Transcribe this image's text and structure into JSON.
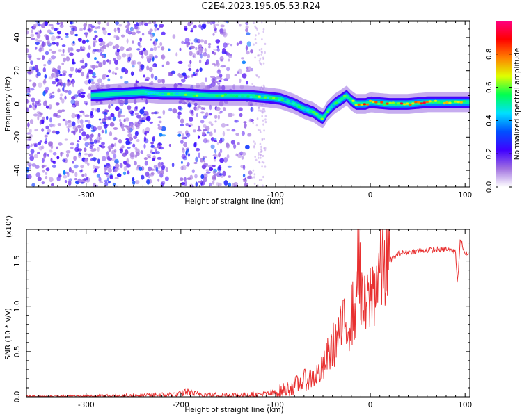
{
  "title": "C2E4.2023.195.05.53.R24",
  "colors": {
    "signal": "#e83030",
    "axis": "#000000",
    "colorbar_stops": [
      "#ffffff",
      "#a070e0",
      "#4000ff",
      "#0050ff",
      "#00e0ff",
      "#00ff50",
      "#e0ff00",
      "#ff8000",
      "#ff0000",
      "#ff0080"
    ]
  },
  "chart_data": [
    {
      "type": "heatmap",
      "title": "",
      "xlabel": "Height of straight line (km)",
      "ylabel": "Frequency (Hz)",
      "xlim": [
        -363,
        105
      ],
      "ylim": [
        -50,
        50
      ],
      "xticks": [
        -300,
        -200,
        -100,
        0,
        100
      ],
      "yticks": [
        -40,
        -20,
        0,
        20,
        40
      ],
      "colorbar": {
        "label": "Normalized spectral amplitude",
        "range": [
          0.0,
          1.0
        ],
        "ticks": [
          "0.0",
          "0.2",
          "0.4",
          "0.6",
          "0.8"
        ]
      },
      "ridge": {
        "x": [
          -295,
          -270,
          -240,
          -220,
          -200,
          -170,
          -150,
          -130,
          -110,
          -95,
          -80,
          -70,
          -60,
          -50,
          -45,
          -38,
          -30,
          -25,
          -20,
          -15,
          -10,
          -5,
          0,
          20,
          40,
          60,
          80,
          100
        ],
        "y": [
          5,
          6,
          7,
          6,
          6,
          5,
          5,
          5,
          4,
          3,
          0,
          -3,
          -5,
          -9,
          -4,
          0,
          3,
          5,
          2,
          0,
          0,
          0,
          1,
          0,
          0,
          1,
          1,
          1
        ]
      }
    },
    {
      "type": "line",
      "title": "",
      "xlabel": "Height of straight line (km)",
      "ylabel": "SNR (10 * v/v)",
      "scale_label": "(x10⁴)",
      "xlim": [
        -363,
        105
      ],
      "ylim": [
        0,
        1.85
      ],
      "xticks": [
        -300,
        -200,
        -100,
        0,
        100
      ],
      "yticks": [
        "0.0",
        "0.5",
        "1.0",
        "1.5"
      ],
      "series": [
        {
          "x": [
            -363,
            -300,
            -250,
            -220,
            -200,
            -195,
            -185,
            -160,
            -130,
            -110,
            -100,
            -90,
            -80,
            -70,
            -60,
            -50,
            -45,
            -40,
            -35,
            -30,
            -25,
            -20,
            -15,
            -12,
            -10,
            -5,
            0,
            5,
            10,
            20,
            30,
            40,
            60,
            80,
            90,
            92,
            95,
            100,
            105
          ],
          "y": [
            0.0,
            0.0,
            0.01,
            0.02,
            0.03,
            0.06,
            0.03,
            0.02,
            0.02,
            0.03,
            0.04,
            0.08,
            0.12,
            0.18,
            0.22,
            0.3,
            0.45,
            0.55,
            0.65,
            0.75,
            0.8,
            0.9,
            1.0,
            1.85,
            1.0,
            0.95,
            1.1,
            1.25,
            1.4,
            1.5,
            1.58,
            1.6,
            1.62,
            1.63,
            1.6,
            1.25,
            1.75,
            1.58,
            1.57
          ]
        }
      ]
    }
  ]
}
